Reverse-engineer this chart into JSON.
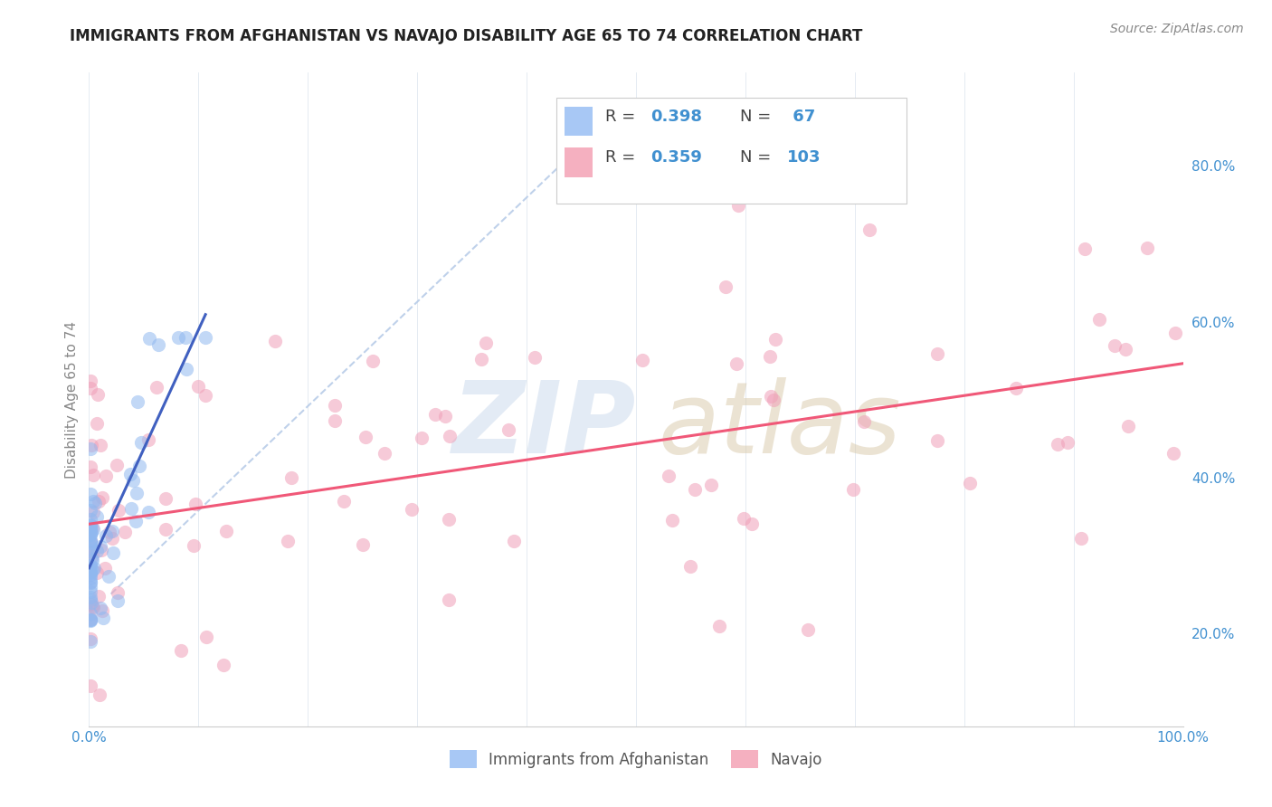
{
  "title": "IMMIGRANTS FROM AFGHANISTAN VS NAVAJO DISABILITY AGE 65 TO 74 CORRELATION CHART",
  "source": "Source: ZipAtlas.com",
  "ylabel": "Disability Age 65 to 74",
  "xlim": [
    0.0,
    1.0
  ],
  "ylim": [
    0.08,
    0.92
  ],
  "xtick_positions": [
    0.0,
    0.1,
    0.2,
    0.3,
    0.4,
    0.5,
    0.6,
    0.7,
    0.8,
    0.9,
    1.0
  ],
  "xticklabels": [
    "0.0%",
    "",
    "",
    "",
    "",
    "",
    "",
    "",
    "",
    "",
    "100.0%"
  ],
  "ytick_positions": [
    0.2,
    0.4,
    0.6,
    0.8
  ],
  "ytick_labels": [
    "20.0%",
    "40.0%",
    "60.0%",
    "80.0%"
  ],
  "legend_color1": "#a8c8f5",
  "legend_color2": "#f5b0c0",
  "scatter_color1": "#90b8f0",
  "scatter_color2": "#f0a0b8",
  "trendline_color1": "#4060c0",
  "trendline_color2": "#f05878",
  "trendline_dash_color": "#b8cce8",
  "legend_label1": "Immigrants from Afghanistan",
  "legend_label2": "Navajo",
  "watermark_zip_color": "#c8d8ec",
  "watermark_atlas_color": "#d8c8a8",
  "afg_seed": 42,
  "nav_seed": 99,
  "grid_color": "#e0e8f0",
  "tick_label_color": "#4090d0",
  "title_fontsize": 12,
  "source_fontsize": 10,
  "tick_fontsize": 11,
  "ylabel_fontsize": 11
}
